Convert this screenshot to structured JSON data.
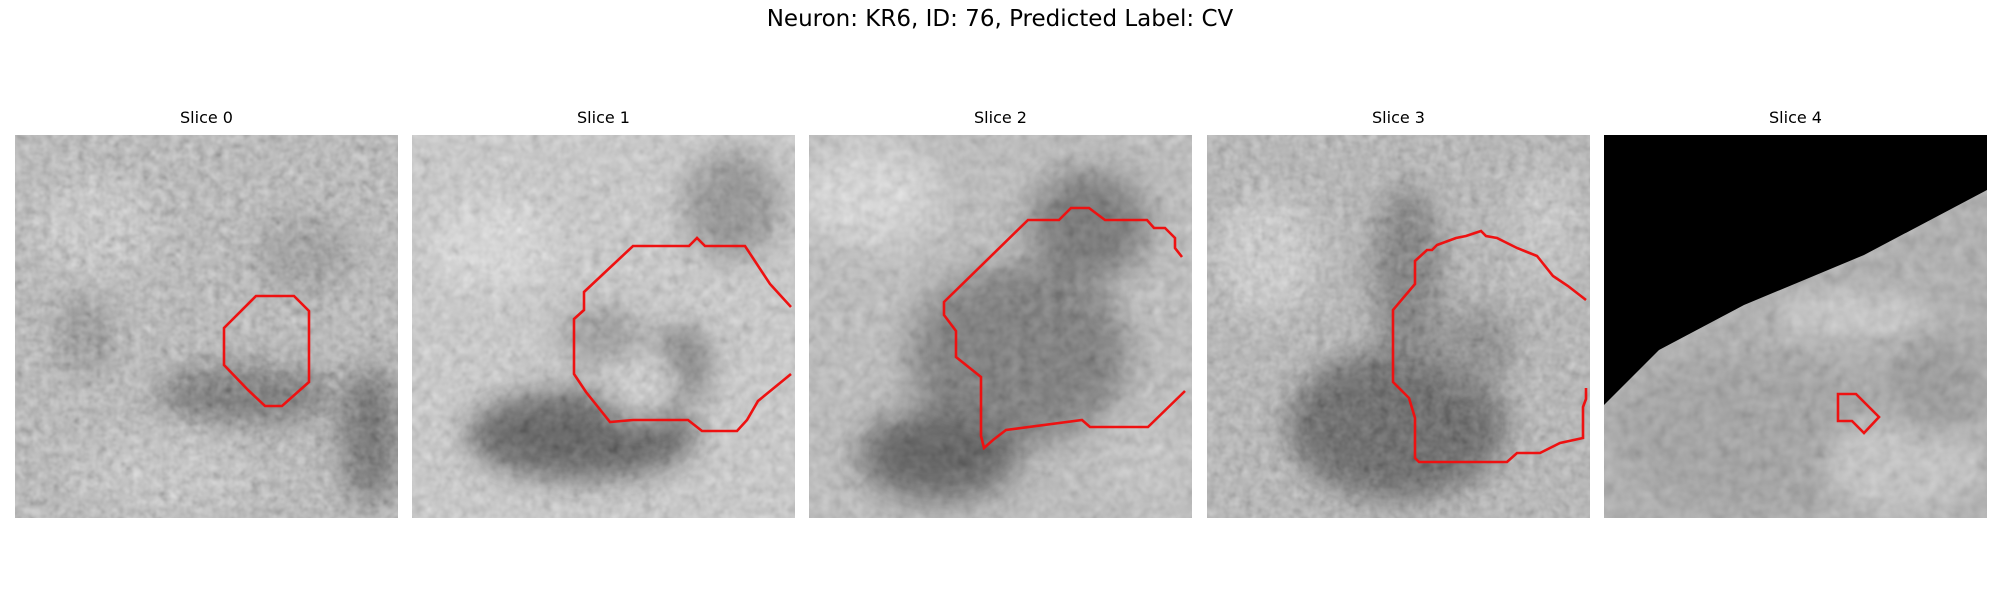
{
  "figure": {
    "title": "Neuron: KR6, ID: 76, Predicted Label: CV"
  },
  "panels": [
    {
      "title": "Slice 0",
      "contour_color": "#ee1111"
    },
    {
      "title": "Slice 1",
      "contour_color": "#ee1111"
    },
    {
      "title": "Slice 2",
      "contour_color": "#ee1111"
    },
    {
      "title": "Slice 3",
      "contour_color": "#ee1111"
    },
    {
      "title": "Slice 4",
      "contour_color": "#ee1111"
    }
  ]
}
